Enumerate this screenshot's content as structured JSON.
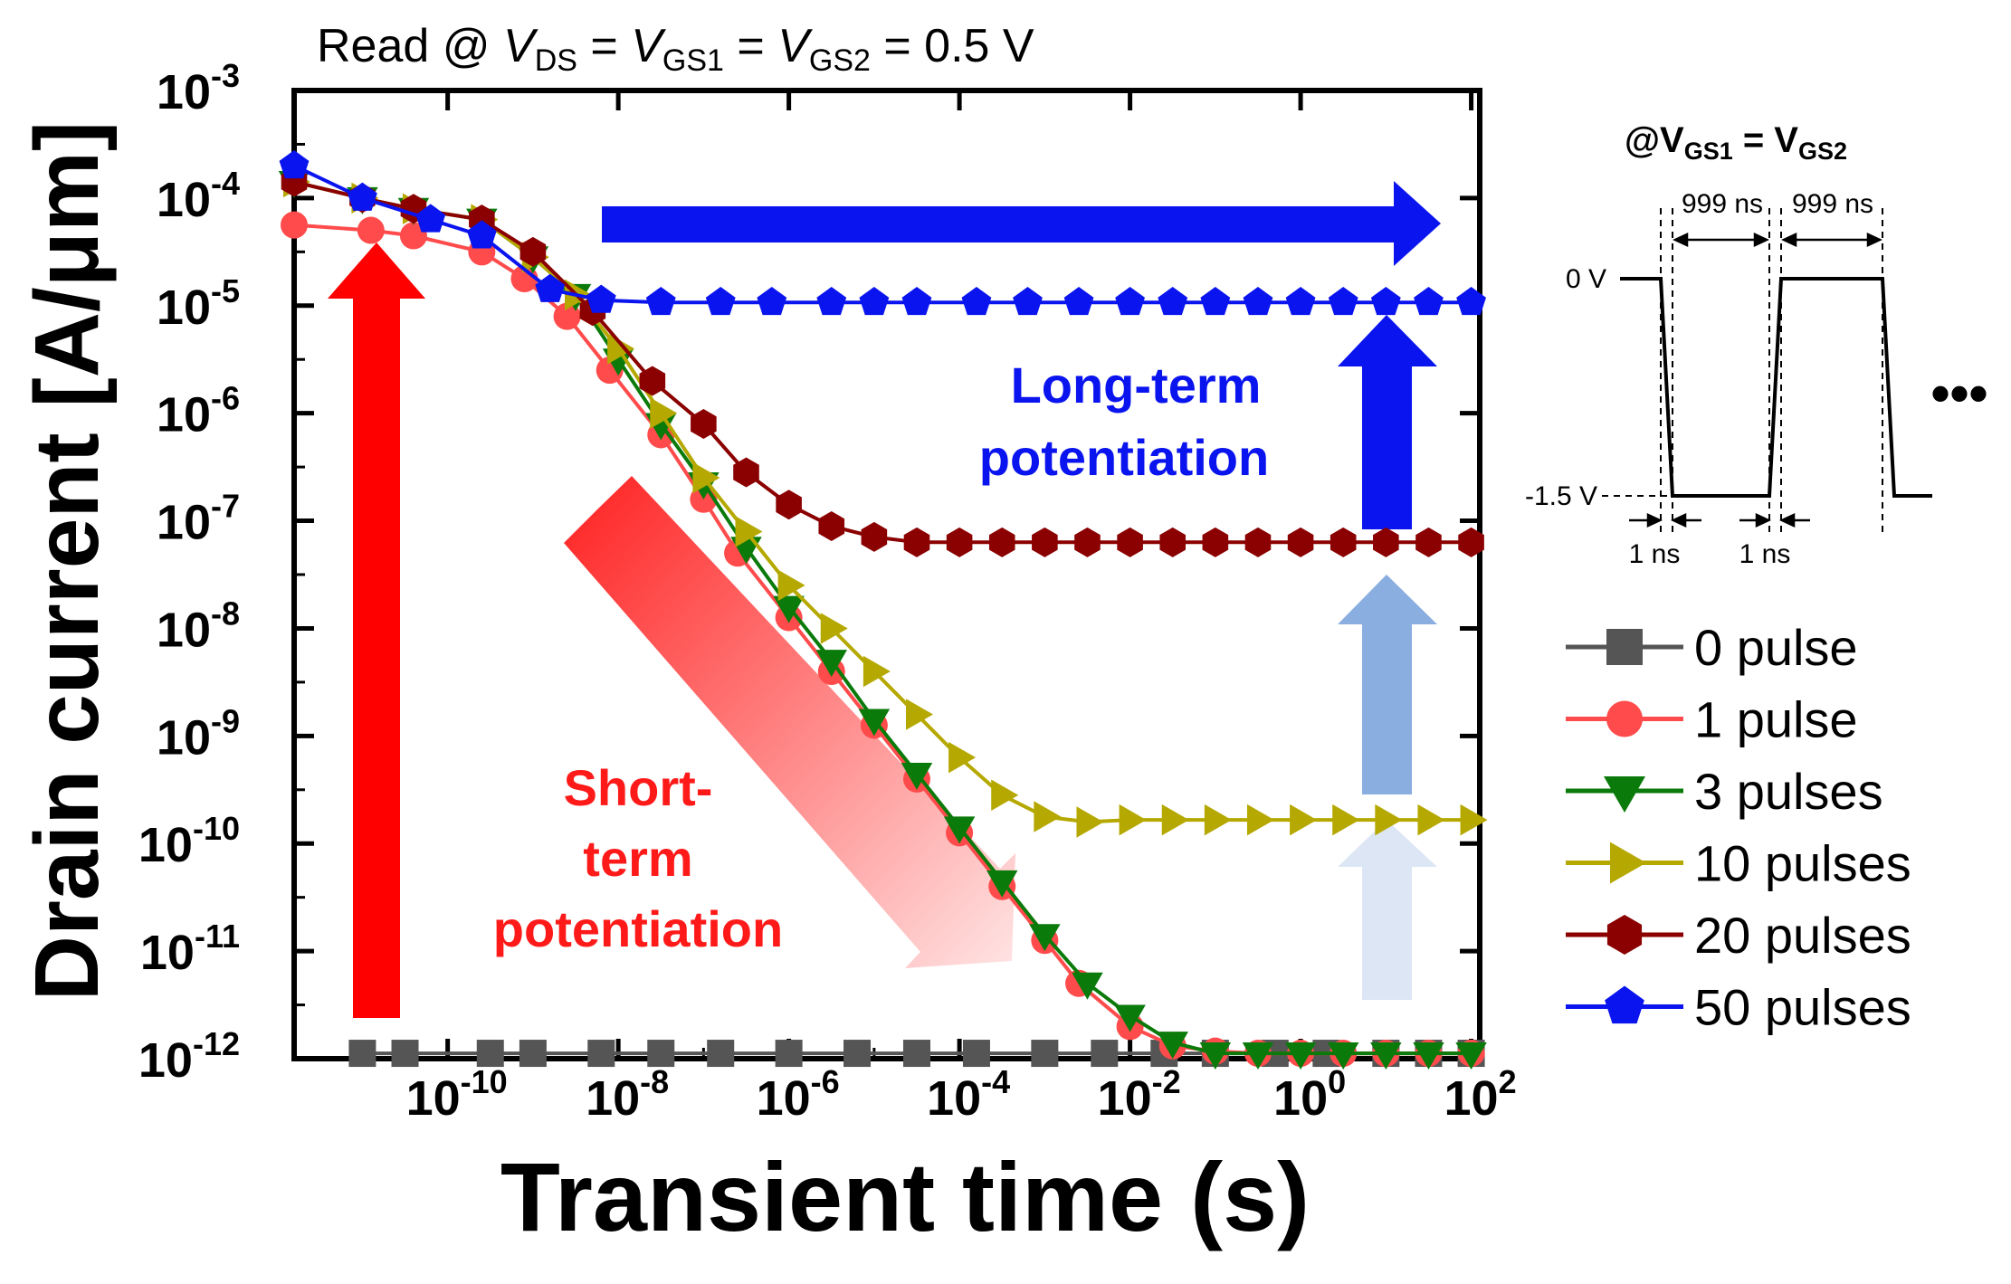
{
  "chart_data": {
    "type": "line",
    "title_prefix": "Read @ ",
    "title_vds": "V",
    "title_vds_sub": "DS",
    "title_eq1": " = ",
    "title_vgs1": "V",
    "title_vgs1_sub": "GS1",
    "title_eq2": " = ",
    "title_vgs2": "V",
    "title_vgs2_sub": "GS2",
    "title_suffix": " = 0.5 V",
    "xlabel": "Transient time (s)",
    "ylabel": "Drain current [A/μm]",
    "xscale": "log",
    "yscale": "log",
    "xlim_exp": [
      -11.8,
      2.1
    ],
    "ylim_exp": [
      -12,
      -3
    ],
    "x_ticks": [
      {
        "base": "10",
        "exp": "-10",
        "v": -10
      },
      {
        "base": "10",
        "exp": "-8",
        "v": -8
      },
      {
        "base": "10",
        "exp": "-6",
        "v": -6
      },
      {
        "base": "10",
        "exp": "-4",
        "v": -4
      },
      {
        "base": "10",
        "exp": "-2",
        "v": -2
      },
      {
        "base": "10",
        "exp": "0",
        "v": 0
      },
      {
        "base": "10",
        "exp": "2",
        "v": 2
      }
    ],
    "y_ticks": [
      {
        "base": "10",
        "exp": "-3",
        "v": -3
      },
      {
        "base": "10",
        "exp": "-4",
        "v": -4
      },
      {
        "base": "10",
        "exp": "-5",
        "v": -5
      },
      {
        "base": "10",
        "exp": "-6",
        "v": -6
      },
      {
        "base": "10",
        "exp": "-7",
        "v": -7
      },
      {
        "base": "10",
        "exp": "-8",
        "v": -8
      },
      {
        "base": "10",
        "exp": "-9",
        "v": -9
      },
      {
        "base": "10",
        "exp": "-10",
        "v": -10
      },
      {
        "base": "10",
        "exp": "-11",
        "v": -11
      },
      {
        "base": "10",
        "exp": "-12",
        "v": -12
      }
    ],
    "series": [
      {
        "name": "0 pulse",
        "color": "#555555",
        "marker": "square",
        "x": [
          -11.0,
          -10.5,
          -9.5,
          -9.0,
          -8.2,
          -7.5,
          -6.8,
          -6.0,
          -5.2,
          -4.5,
          -3.8,
          -3.0,
          -2.3,
          -1.6,
          -1.0,
          -0.3,
          0.3,
          1.0,
          1.5,
          2.0
        ],
        "y": [
          -11.95,
          -11.95,
          -11.95,
          -11.95,
          -11.95,
          -11.95,
          -11.95,
          -11.95,
          -11.95,
          -11.95,
          -11.95,
          -11.95,
          -11.95,
          -11.95,
          -11.95,
          -11.95,
          -11.95,
          -11.95,
          -11.95,
          -11.95
        ]
      },
      {
        "name": "1 pulse",
        "color": "#ff4b4b",
        "marker": "circle",
        "x": [
          -11.8,
          -10.9,
          -10.4,
          -9.6,
          -9.1,
          -8.6,
          -8.1,
          -7.5,
          -7.0,
          -6.6,
          -6.0,
          -5.5,
          -5.0,
          -4.5,
          -4.0,
          -3.5,
          -3.0,
          -2.6,
          -2.0,
          -1.5,
          -1.0,
          -0.5,
          0.0,
          0.5,
          1.0,
          1.5,
          2.0
        ],
        "y": [
          -4.25,
          -4.3,
          -4.35,
          -4.5,
          -4.75,
          -5.1,
          -5.6,
          -6.2,
          -6.8,
          -7.3,
          -7.9,
          -8.4,
          -8.9,
          -9.4,
          -9.9,
          -10.4,
          -10.9,
          -11.3,
          -11.7,
          -11.88,
          -11.93,
          -11.95,
          -11.95,
          -11.95,
          -11.95,
          -11.95,
          -11.95
        ]
      },
      {
        "name": "3 pulses",
        "color": "#0a7a0a",
        "marker": "triangle-down",
        "x": [
          -11.8,
          -11.0,
          -10.4,
          -9.6,
          -9.0,
          -8.5,
          -8.0,
          -7.5,
          -7.0,
          -6.5,
          -6.0,
          -5.5,
          -5.0,
          -4.5,
          -4.0,
          -3.5,
          -3.0,
          -2.5,
          -2.0,
          -1.5,
          -1.0,
          -0.5,
          0.0,
          0.5,
          1.0,
          1.5,
          2.0
        ],
        "y": [
          -3.85,
          -4.0,
          -4.1,
          -4.2,
          -4.55,
          -4.9,
          -5.5,
          -6.1,
          -6.65,
          -7.25,
          -7.8,
          -8.3,
          -8.85,
          -9.35,
          -9.85,
          -10.35,
          -10.85,
          -11.3,
          -11.6,
          -11.85,
          -11.95,
          -11.95,
          -11.95,
          -11.95,
          -11.95,
          -11.95,
          -11.95
        ]
      },
      {
        "name": "10 pulses",
        "color": "#b5a800",
        "marker": "triangle-right",
        "x": [
          -11.8,
          -11.0,
          -10.4,
          -9.6,
          -9.0,
          -8.5,
          -8.0,
          -7.5,
          -7.0,
          -6.5,
          -6.0,
          -5.5,
          -5.0,
          -4.5,
          -4.0,
          -3.5,
          -3.0,
          -2.5,
          -2.0,
          -1.5,
          -1.0,
          -0.5,
          0.0,
          0.5,
          1.0,
          1.5,
          2.0
        ],
        "y": [
          -3.85,
          -4.0,
          -4.1,
          -4.2,
          -4.55,
          -4.9,
          -5.4,
          -6.0,
          -6.6,
          -7.1,
          -7.6,
          -8.0,
          -8.4,
          -8.8,
          -9.2,
          -9.55,
          -9.75,
          -9.8,
          -9.78,
          -9.78,
          -9.78,
          -9.78,
          -9.78,
          -9.78,
          -9.78,
          -9.78,
          -9.78
        ]
      },
      {
        "name": "20 pulses",
        "color": "#8b0000",
        "marker": "hexagon",
        "x": [
          -11.8,
          -11.0,
          -10.4,
          -9.6,
          -9.0,
          -8.3,
          -7.6,
          -7.0,
          -6.5,
          -6.0,
          -5.5,
          -5.0,
          -4.5,
          -4.0,
          -3.5,
          -3.0,
          -2.5,
          -2.0,
          -1.5,
          -1.0,
          -0.5,
          0.0,
          0.5,
          1.0,
          1.5,
          2.0
        ],
        "y": [
          -3.85,
          -4.0,
          -4.1,
          -4.2,
          -4.5,
          -5.05,
          -5.7,
          -6.1,
          -6.55,
          -6.85,
          -7.05,
          -7.15,
          -7.2,
          -7.2,
          -7.2,
          -7.2,
          -7.2,
          -7.2,
          -7.2,
          -7.2,
          -7.2,
          -7.2,
          -7.2,
          -7.2,
          -7.2,
          -7.2
        ]
      },
      {
        "name": "50 pulses",
        "color": "#0a14ee",
        "marker": "pentagon",
        "x": [
          -11.8,
          -11.0,
          -10.2,
          -9.6,
          -8.8,
          -8.2,
          -7.5,
          -6.8,
          -6.2,
          -5.5,
          -5.0,
          -4.5,
          -3.8,
          -3.2,
          -2.6,
          -2.0,
          -1.5,
          -1.0,
          -0.5,
          0.0,
          0.5,
          1.0,
          1.5,
          2.0
        ],
        "y": [
          -3.7,
          -4.0,
          -4.2,
          -4.35,
          -4.85,
          -4.95,
          -4.97,
          -4.97,
          -4.97,
          -4.97,
          -4.97,
          -4.97,
          -4.97,
          -4.97,
          -4.97,
          -4.97,
          -4.97,
          -4.97,
          -4.97,
          -4.97,
          -4.97,
          -4.97,
          -4.97,
          -4.97
        ]
      }
    ],
    "annotations": {
      "short_term": [
        "Short-",
        "term",
        "potentiation"
      ],
      "long_term": [
        "Long-term",
        "potentiation"
      ]
    },
    "legend_position": "right"
  },
  "pulse_diagram": {
    "title_at": "@V",
    "title_sub1": "GS1",
    "title_eq": " = V",
    "title_sub2": "GS2",
    "v_high": "0 V",
    "v_low": "-1.5 V",
    "width_label_1": "999 ns",
    "width_label_2": "999 ns",
    "edge_label_1": "1 ns",
    "edge_label_2": "1 ns",
    "ellipsis": "•••"
  },
  "colors": {
    "short_term": "#ff1a1a",
    "long_term": "#0a14ee"
  }
}
